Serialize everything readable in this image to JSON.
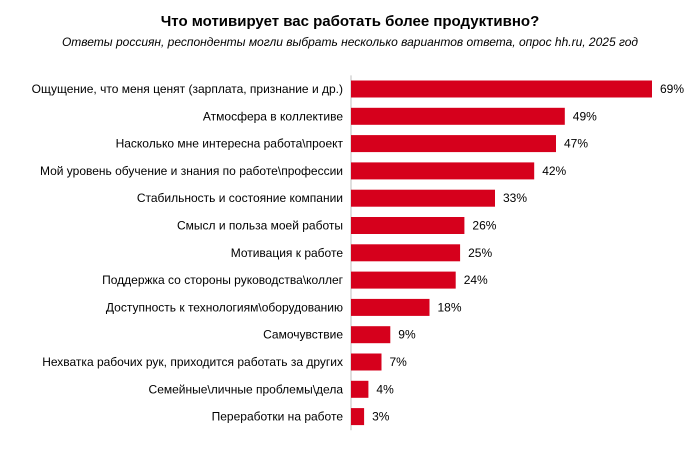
{
  "chart_data": {
    "type": "bar",
    "orientation": "horizontal",
    "title": "Что мотивирует вас работать более продуктивно?",
    "subtitle": "Ответы россиян, респонденты могли выбрать несколько вариантов ответа, опрос hh.ru, 2025 год",
    "categories": [
      "Ощущение, что меня ценят (зарплата, признание и др.)",
      "Атмосфера в коллективе",
      "Насколько мне интересна работа\\проект",
      "Мой уровень обучение и знания по работе\\профессии",
      "Стабильность и состояние компании",
      "Смысл и польза моей работы",
      "Мотивация к работе",
      "Поддержка со стороны руководства\\коллег",
      "Доступность к технологиям\\оборудованию",
      "Самочувствие",
      "Нехватка рабочих рук, приходится работать за других",
      "Семейные\\личные проблемы\\дела",
      "Переработки на работе"
    ],
    "values": [
      69,
      49,
      47,
      42,
      33,
      26,
      25,
      24,
      18,
      9,
      7,
      4,
      3
    ],
    "value_labels": [
      "69%",
      "49%",
      "47%",
      "42%",
      "33%",
      "26%",
      "25%",
      "24%",
      "18%",
      "9%",
      "7%",
      "4%",
      "3%"
    ],
    "unit": "%",
    "xlim": [
      0,
      69
    ],
    "xlabel": "",
    "ylabel": "",
    "bar_color": "#d6001c",
    "grid": false,
    "legend": "none"
  }
}
